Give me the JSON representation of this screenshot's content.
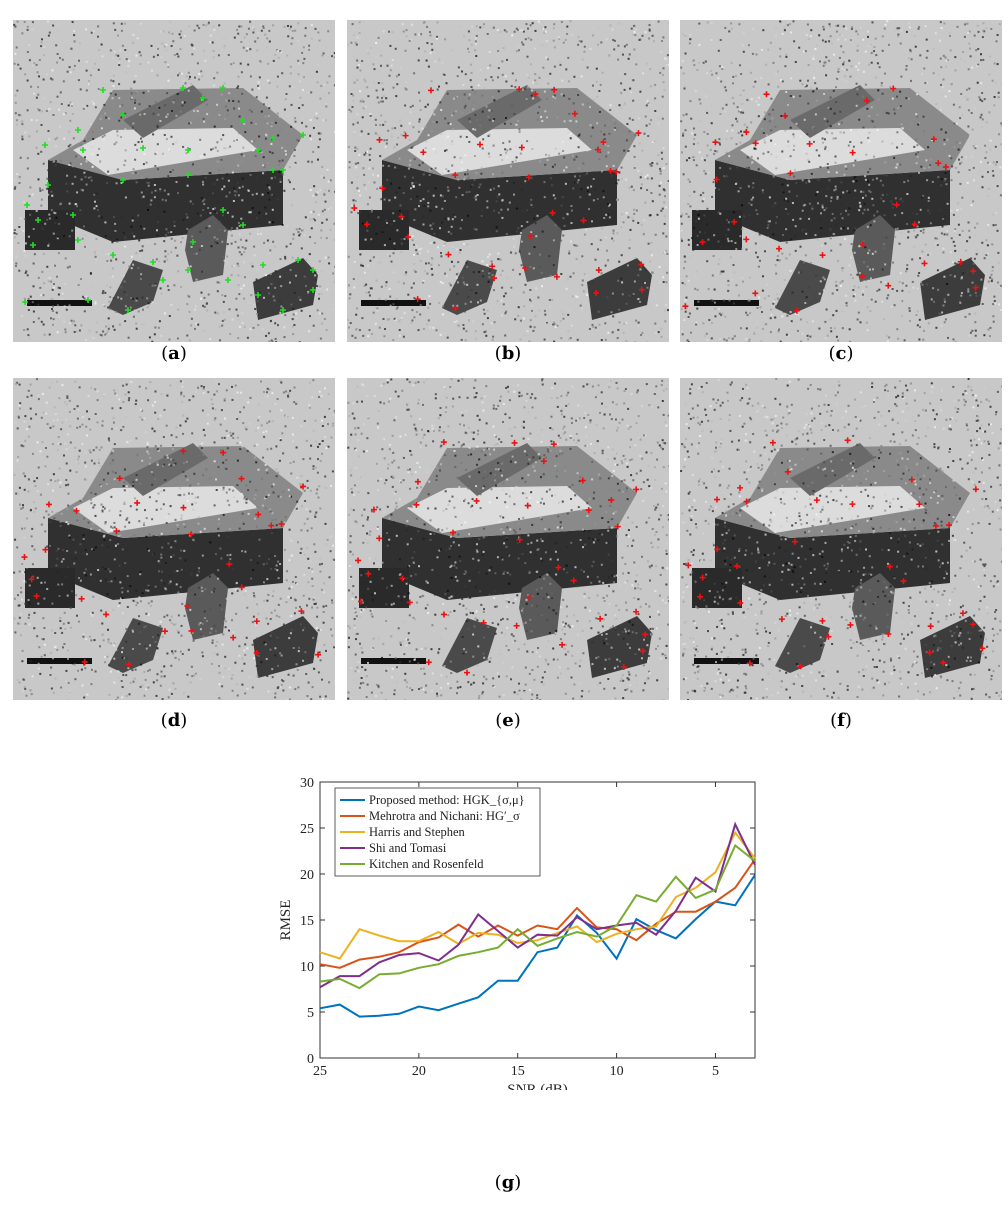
{
  "panels": [
    {
      "letter": "a",
      "marker_color": "#22dd22"
    },
    {
      "letter": "b",
      "marker_color": "#ee1111"
    },
    {
      "letter": "c",
      "marker_color": "#ee1111"
    },
    {
      "letter": "d",
      "marker_color": "#ee1111"
    },
    {
      "letter": "e",
      "marker_color": "#ee1111"
    },
    {
      "letter": "f",
      "marker_color": "#ee1111"
    }
  ],
  "panel_g_label": "g",
  "chart_data": {
    "type": "line",
    "xlabel": "SNR (dB)",
    "ylabel": "RMSE",
    "xlim": [
      25,
      3
    ],
    "ylim": [
      0,
      30
    ],
    "xticks": [
      25,
      20,
      15,
      10,
      5
    ],
    "yticks": [
      0,
      5,
      10,
      15,
      20,
      25,
      30
    ],
    "grid": false,
    "legend_position": "top-left",
    "x": [
      25,
      24,
      23,
      22,
      21,
      20,
      19,
      18,
      17,
      16,
      15,
      14,
      13,
      12,
      11,
      10,
      9,
      8,
      7,
      6,
      5,
      4,
      3
    ],
    "series": [
      {
        "name": "Proposed method: HGK_{σ,μ}",
        "color": "#0072BD",
        "values": [
          5.4,
          5.8,
          4.5,
          4.6,
          4.8,
          5.6,
          5.2,
          5.9,
          6.6,
          8.4,
          8.4,
          11.5,
          12.0,
          15.5,
          13.6,
          10.8,
          15.1,
          13.9,
          13.0,
          15.1,
          17.0,
          16.6,
          19.9
        ]
      },
      {
        "name": "Mehrotra and Nichani: HG′_σ",
        "color": "#D95319",
        "values": [
          10.2,
          9.8,
          10.7,
          11.0,
          11.5,
          12.6,
          13.1,
          14.5,
          13.2,
          14.4,
          13.3,
          14.4,
          14.0,
          16.3,
          14.2,
          14.0,
          12.8,
          14.6,
          15.9,
          15.9,
          17.0,
          18.5,
          21.6
        ]
      },
      {
        "name": "Harris and Stephen",
        "color": "#EDB120",
        "values": [
          11.5,
          10.8,
          14.0,
          13.3,
          12.7,
          12.7,
          13.7,
          12.4,
          13.6,
          13.4,
          12.5,
          12.8,
          13.6,
          14.3,
          12.6,
          13.5,
          14.0,
          14.3,
          17.5,
          18.5,
          20.2,
          24.5,
          21.7
        ]
      },
      {
        "name": "Shi and Tomasi",
        "color": "#7E2F8E",
        "values": [
          7.7,
          8.9,
          8.9,
          10.4,
          11.2,
          11.4,
          10.6,
          12.3,
          15.6,
          13.8,
          12.0,
          13.4,
          13.3,
          15.3,
          14.0,
          14.4,
          14.7,
          13.4,
          16.0,
          19.6,
          18.1,
          25.4,
          21.0
        ]
      },
      {
        "name": "Kitchen and Rosenfeld",
        "color": "#77AC30",
        "values": [
          8.3,
          8.6,
          7.6,
          9.1,
          9.2,
          9.8,
          10.2,
          11.1,
          11.5,
          12.0,
          14.0,
          12.2,
          13.0,
          13.7,
          13.2,
          14.4,
          17.7,
          17.0,
          19.7,
          17.4,
          18.3,
          23.1,
          21.4
        ]
      }
    ]
  }
}
